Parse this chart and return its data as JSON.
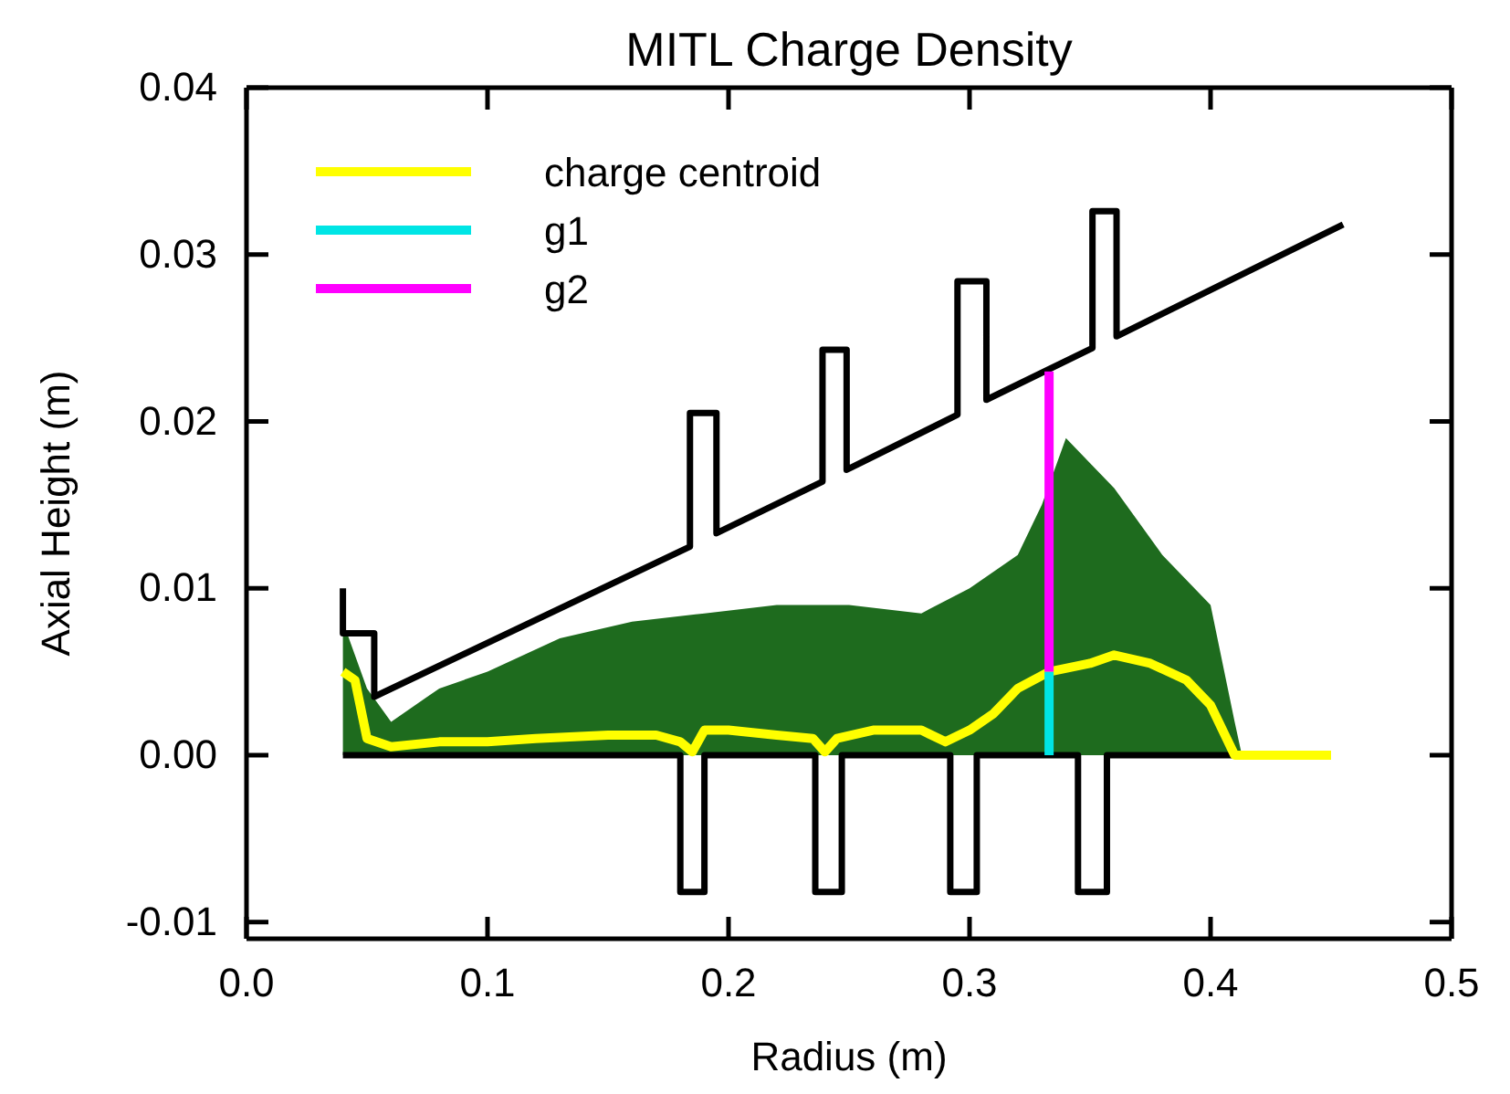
{
  "chart_data": {
    "type": "line",
    "title": "MITL Charge Density",
    "xlabel": "Radius (m)",
    "ylabel": "Axial Height (m)",
    "xlim": [
      0,
      0.5
    ],
    "xticks": [
      {
        "value": 0,
        "label": "0.0"
      },
      {
        "value": 0.1,
        "label": "0.1"
      },
      {
        "value": 0.2,
        "label": "0.2"
      },
      {
        "value": 0.3,
        "label": "0.3"
      },
      {
        "value": 0.4,
        "label": "0.4"
      },
      {
        "value": 0.5,
        "label": "0.5"
      }
    ],
    "ylim": [
      -0.011,
      0.04
    ],
    "yticks": [
      {
        "value": -0.01,
        "label": "-0.01"
      },
      {
        "value": 0,
        "label": "0.00"
      },
      {
        "value": 0.01,
        "label": "0.01"
      },
      {
        "value": 0.02,
        "label": "0.02"
      },
      {
        "value": 0.03,
        "label": "0.03"
      },
      {
        "value": 0.04,
        "label": "0.04"
      }
    ],
    "legend": "top left",
    "line_style": "solid",
    "marker": "none",
    "series": [
      {
        "type": "area",
        "color": "#1e6b1e",
        "x": [
          0.04,
          0.05,
          0.06,
          0.08,
          0.1,
          0.13,
          0.16,
          0.19,
          0.22,
          0.25,
          0.28,
          0.3,
          0.32,
          0.33,
          0.34,
          0.36,
          0.38,
          0.4,
          0.41,
          0.413
        ],
        "values": [
          0.008,
          0.004,
          0.002,
          0.004,
          0.005,
          0.007,
          0.008,
          0.0085,
          0.009,
          0.009,
          0.0085,
          0.01,
          0.012,
          0.015,
          0.019,
          0.016,
          0.012,
          0.009,
          0.002,
          0
        ]
      },
      {
        "color": "#000000",
        "x": [
          0.04,
          0.04,
          0.053,
          0.053,
          0.184,
          0.184,
          0.195,
          0.195,
          0.239,
          0.239,
          0.249,
          0.249,
          0.295,
          0.295,
          0.307,
          0.307,
          0.351,
          0.351,
          0.361,
          0.361,
          0.455
        ],
        "values": [
          0.01,
          0.0073,
          0.0073,
          0.0035,
          0.0125,
          0.0205,
          0.0205,
          0.0133,
          0.0164,
          0.0243,
          0.0243,
          0.0171,
          0.0204,
          0.0284,
          0.0284,
          0.0213,
          0.0244,
          0.0326,
          0.0326,
          0.0251,
          0.0318
        ]
      },
      {
        "color": "#000000",
        "x": [
          0.04,
          0.18,
          0.18,
          0.19,
          0.19,
          0.236,
          0.236,
          0.247,
          0.247,
          0.292,
          0.292,
          0.303,
          0.303,
          0.345,
          0.345,
          0.357,
          0.357,
          0.41
        ],
        "values": [
          0,
          0,
          -0.0082,
          -0.0082,
          0,
          0,
          -0.0082,
          -0.0082,
          0,
          0,
          -0.0082,
          -0.0082,
          0,
          0,
          -0.0082,
          -0.0082,
          0,
          0
        ]
      },
      {
        "name": "charge centroid",
        "color": "#ffff00",
        "x": [
          0.04,
          0.045,
          0.05,
          0.06,
          0.08,
          0.1,
          0.12,
          0.15,
          0.17,
          0.18,
          0.185,
          0.19,
          0.2,
          0.22,
          0.235,
          0.24,
          0.245,
          0.26,
          0.28,
          0.29,
          0.3,
          0.31,
          0.32,
          0.333,
          0.35,
          0.36,
          0.375,
          0.39,
          0.4,
          0.41,
          0.45
        ],
        "values": [
          0.005,
          0.0045,
          0.001,
          0.0005,
          0.0008,
          0.0008,
          0.001,
          0.0012,
          0.0012,
          0.0008,
          0.0002,
          0.0015,
          0.0015,
          0.0012,
          0.001,
          0.0002,
          0.001,
          0.0015,
          0.0015,
          0.0008,
          0.0015,
          0.0025,
          0.004,
          0.005,
          0.0055,
          0.006,
          0.0055,
          0.0045,
          0.003,
          0,
          0
        ]
      },
      {
        "name": "g1",
        "color": "#00e5e5",
        "x": [
          0.333,
          0.333
        ],
        "values": [
          0,
          0.005
        ]
      },
      {
        "name": "g2",
        "color": "#ff00ff",
        "x": [
          0.333,
          0.333
        ],
        "values": [
          0.005,
          0.023
        ]
      }
    ]
  }
}
